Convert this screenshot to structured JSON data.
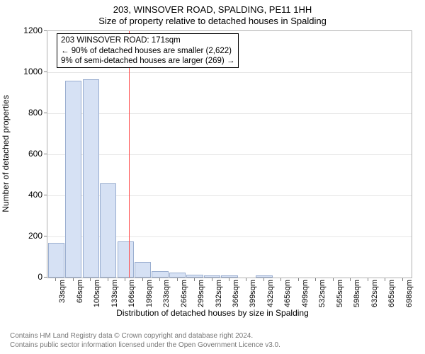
{
  "title_main": "203, WINSOVER ROAD, SPALDING, PE11 1HH",
  "title_sub": "Size of property relative to detached houses in Spalding",
  "chart": {
    "type": "histogram",
    "ylabel": "Number of detached properties",
    "xlabel": "Distribution of detached houses by size in Spalding",
    "ylim": [
      0,
      1200
    ],
    "ytick_step": 200,
    "bar_fill": "#d6e1f4",
    "bar_border": "#9aaed0",
    "grid_color": "#e6e6e6",
    "axis_color": "#b0b0b0",
    "background_color": "#ffffff",
    "bar_width_ratio": 0.95,
    "categories": [
      "33sqm",
      "66sqm",
      "100sqm",
      "133sqm",
      "166sqm",
      "199sqm",
      "233sqm",
      "266sqm",
      "299sqm",
      "332sqm",
      "366sqm",
      "399sqm",
      "432sqm",
      "465sqm",
      "499sqm",
      "532sqm",
      "565sqm",
      "598sqm",
      "632sqm",
      "665sqm",
      "698sqm"
    ],
    "values": [
      170,
      960,
      965,
      460,
      175,
      75,
      32,
      25,
      14,
      12,
      12,
      0,
      10,
      0,
      0,
      0,
      0,
      0,
      0,
      0,
      0
    ],
    "reference_line": {
      "x_index": 4.18,
      "color": "#ff4d4d"
    }
  },
  "annotation": {
    "line1": "203 WINSOVER ROAD: 171sqm",
    "line2": "← 90% of detached houses are smaller (2,622)",
    "line3": "9% of semi-detached houses are larger (269) →",
    "border_color": "#000000",
    "bg_color": "#ffffff",
    "fontsize": 11.5
  },
  "attribution": {
    "line1": "Contains HM Land Registry data © Crown copyright and database right 2024.",
    "line2": "Contains public sector information licensed under the Open Government Licence v3.0.",
    "color": "#777777",
    "fontsize": 10
  }
}
